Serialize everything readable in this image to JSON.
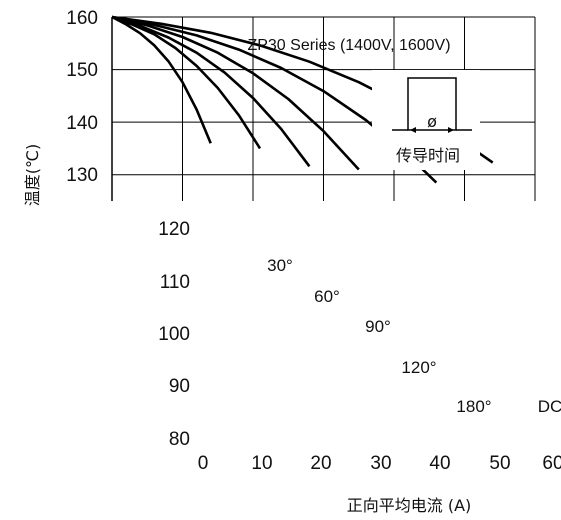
{
  "chart_data": {
    "type": "line",
    "title": "ZP30 Series (1400V, 1600V)",
    "xlabel": "正向平均电流 (A)",
    "ylabel": "温度(℃)",
    "xlim": [
      0,
      60
    ],
    "ylim": [
      80,
      160
    ],
    "x_ticks": [
      "0",
      "10",
      "20",
      "30",
      "40",
      "50",
      "60"
    ],
    "y_ticks": [
      "160",
      "150",
      "140",
      "130",
      "120",
      "110",
      "100",
      "90",
      "80"
    ],
    "inset_label": "传导时间",
    "inset_symbol": "ø",
    "series": [
      {
        "name": "30°",
        "x": [
          0,
          2,
          4,
          6,
          8,
          10,
          12,
          14
        ],
        "y": [
          160,
          158.6,
          156.9,
          154.6,
          151.6,
          147.6,
          142.4,
          136
        ]
      },
      {
        "name": "60°",
        "x": [
          0,
          3,
          6,
          9,
          12,
          15,
          18,
          21
        ],
        "y": [
          160,
          158.5,
          156.7,
          154.1,
          150.7,
          146.5,
          141.3,
          135
        ]
      },
      {
        "name": "90°",
        "x": [
          0,
          4,
          8,
          12,
          16,
          20,
          24,
          28
        ],
        "y": [
          160,
          158.3,
          156.1,
          153.2,
          149.4,
          144.6,
          138.7,
          131.6
        ]
      },
      {
        "name": "120°",
        "x": [
          0,
          5,
          10,
          15,
          20,
          25,
          30,
          35
        ],
        "y": [
          160,
          158.4,
          156.2,
          153.2,
          149.3,
          144.4,
          138.3,
          131
        ]
      },
      {
        "name": "180°",
        "x": [
          0,
          6,
          12,
          18,
          24,
          30,
          36,
          42,
          46
        ],
        "y": [
          160,
          158.5,
          156.5,
          153.8,
          150.3,
          145.9,
          140.4,
          133.7,
          128.5
        ]
      },
      {
        "name": "DC",
        "x": [
          0,
          7,
          14,
          21,
          28,
          35,
          42,
          49,
          54
        ],
        "y": [
          160,
          158.7,
          157,
          154.6,
          151.5,
          147.6,
          142.8,
          137,
          132.3
        ]
      }
    ],
    "grid": true,
    "legend": "labels next to curves"
  },
  "colors": {
    "curve": "#000000",
    "grid": "#000000",
    "background": "#ffffff"
  }
}
